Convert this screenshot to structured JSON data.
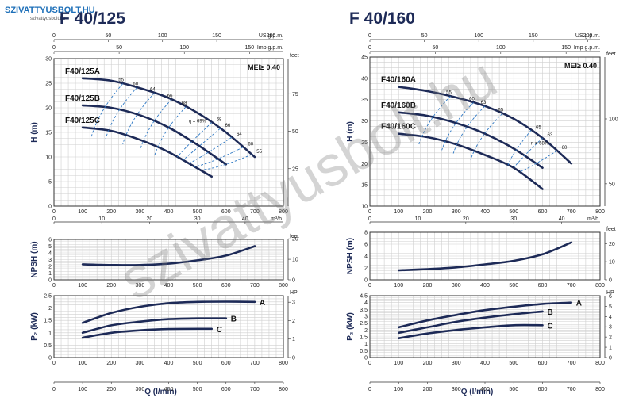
{
  "logo": {
    "text": "SZIVATTYUSBOLT.HU",
    "subtext": "szivattyusbolt.hu"
  },
  "watermark": "szivattyusbolt.hu",
  "colors": {
    "curve": "#1d2a57",
    "efficiency": "#2e78c4",
    "grid": "#cfcfcf"
  },
  "chart_data": [
    {
      "model": "F 40/125",
      "title": "F 40/125",
      "mei": "MEI≥ 0.40",
      "eta_label": "η = 69%",
      "flow_lpm_label": "Q (l/min)",
      "flow_lpm_ticks": [
        "0",
        "100",
        "200",
        "300",
        "400",
        "500",
        "600",
        "700",
        "800"
      ],
      "flow_m3h_label": "m³/h",
      "flow_m3h_ticks": [
        "0",
        "10",
        "20",
        "30",
        "40"
      ],
      "us_gpm_label": "US g.p.m.",
      "us_gpm_ticks": [
        "0",
        "50",
        "100",
        "150",
        "200"
      ],
      "imp_gpm_label": "Imp g.p.m.",
      "imp_gpm_ticks": [
        "0",
        "50",
        "100",
        "150"
      ],
      "head": {
        "type": "line",
        "ylabel": "H (m)",
        "ylim": [
          0,
          30
        ],
        "yticks": [
          "0",
          "5",
          "10",
          "15",
          "20",
          "25",
          "30"
        ],
        "y2label": "feet",
        "y2ticks": [
          "25",
          "50",
          "75"
        ],
        "series": [
          {
            "name": "F40/125A",
            "x": [
              100,
              200,
              300,
              400,
              500,
              600,
              700
            ],
            "y": [
              26,
              25.5,
              24,
              22,
              19,
              15,
              10
            ]
          },
          {
            "name": "F40/125B",
            "x": [
              100,
              200,
              300,
              400,
              500,
              600
            ],
            "y": [
              20.5,
              20,
              18.5,
              16,
              12.5,
              8.5
            ]
          },
          {
            "name": "F40/125C",
            "x": [
              100,
              200,
              300,
              400,
              550
            ],
            "y": [
              16,
              15.3,
              13.5,
              11,
              6
            ]
          }
        ],
        "efficiency_labels": [
          "55",
          "60",
          "64",
          "66",
          "68",
          "68",
          "66",
          "64",
          "60",
          "55"
        ]
      },
      "npsh": {
        "type": "line",
        "ylabel": "NPSH (m)",
        "ylim": [
          0,
          6
        ],
        "yticks": [
          "0",
          "1",
          "2",
          "3",
          "4",
          "5",
          "6"
        ],
        "y2label": "feet",
        "y2ticks": [
          "0",
          "10",
          "20"
        ],
        "series": [
          {
            "name": "",
            "x": [
              100,
              200,
              300,
              400,
              500,
              600,
              700
            ],
            "y": [
              2.3,
              2.2,
              2.2,
              2.4,
              2.9,
              3.6,
              5
            ]
          }
        ]
      },
      "power": {
        "type": "line",
        "ylabel": "P₂ (kW)",
        "ylim": [
          0,
          2.5
        ],
        "yticks": [
          "0",
          "0.5",
          "1",
          "1.5",
          "2",
          "2.5"
        ],
        "y2label": "HP",
        "y2ticks": [
          "0",
          "1",
          "2",
          "3"
        ],
        "series": [
          {
            "name": "A",
            "x": [
              100,
              200,
              300,
              400,
              500,
              600,
              700
            ],
            "y": [
              1.4,
              1.8,
              2.05,
              2.2,
              2.25,
              2.26,
              2.25
            ]
          },
          {
            "name": "B",
            "x": [
              100,
              200,
              300,
              400,
              500,
              600
            ],
            "y": [
              1.0,
              1.3,
              1.45,
              1.55,
              1.58,
              1.58
            ]
          },
          {
            "name": "C",
            "x": [
              100,
              200,
              300,
              400,
              550
            ],
            "y": [
              0.8,
              1.0,
              1.1,
              1.15,
              1.16
            ]
          }
        ]
      }
    },
    {
      "model": "F 40/160",
      "title": "F 40/160",
      "mei": "MEI≥ 0.40",
      "eta_label": "η = 68%",
      "flow_lpm_label": "Q (l/min)",
      "flow_lpm_ticks": [
        "0",
        "100",
        "200",
        "300",
        "400",
        "500",
        "600",
        "700",
        "800"
      ],
      "flow_m3h_label": "m³/h",
      "flow_m3h_ticks": [
        "0",
        "10",
        "20",
        "30",
        "40"
      ],
      "us_gpm_label": "US g.p.m.",
      "us_gpm_ticks": [
        "0",
        "50",
        "100",
        "150",
        "200"
      ],
      "imp_gpm_label": "Imp g.p.m.",
      "imp_gpm_ticks": [
        "0",
        "50",
        "100",
        "150"
      ],
      "head": {
        "type": "line",
        "ylabel": "H (m)",
        "ylim": [
          10,
          45
        ],
        "yticks": [
          "10",
          "15",
          "20",
          "25",
          "30",
          "35",
          "40",
          "45"
        ],
        "y2label": "feet",
        "y2ticks": [
          "50",
          "100"
        ],
        "series": [
          {
            "name": "F40/160A",
            "x": [
              100,
              200,
              300,
              400,
              500,
              600,
              700
            ],
            "y": [
              38,
              37,
              35.5,
              33.5,
              30.5,
              26,
              20
            ]
          },
          {
            "name": "F40/160B",
            "x": [
              100,
              200,
              300,
              400,
              500,
              600
            ],
            "y": [
              32,
              31.2,
              29.5,
              27,
              23.5,
              19
            ]
          },
          {
            "name": "F40/160C",
            "x": [
              100,
              200,
              300,
              400,
              500,
              600
            ],
            "y": [
              27,
              26.2,
              24.5,
              22,
              19,
              14
            ]
          }
        ],
        "efficiency_labels": [
          "55",
          "60",
          "63",
          "65",
          "65",
          "63",
          "60"
        ]
      },
      "npsh": {
        "type": "line",
        "ylabel": "NPSH (m)",
        "ylim": [
          0,
          8
        ],
        "yticks": [
          "0",
          "2",
          "4",
          "6",
          "8"
        ],
        "y2label": "feet",
        "y2ticks": [
          "0",
          "10",
          "20"
        ],
        "series": [
          {
            "name": "",
            "x": [
              100,
              200,
              300,
              400,
              500,
              600,
              700
            ],
            "y": [
              1.6,
              1.8,
              2.1,
              2.6,
              3.2,
              4.3,
              6.3
            ]
          }
        ]
      },
      "power": {
        "type": "line",
        "ylabel": "P₂ (kW)",
        "ylim": [
          0,
          4.5
        ],
        "yticks": [
          "0",
          "0.5",
          "1",
          "1.5",
          "2",
          "2.5",
          "3",
          "3.5",
          "4",
          "4.5"
        ],
        "y2label": "HP",
        "y2ticks": [
          "0",
          "1",
          "2",
          "3",
          "4",
          "5",
          "6"
        ],
        "series": [
          {
            "name": "A",
            "x": [
              100,
              200,
              300,
              400,
              500,
              600,
              700
            ],
            "y": [
              2.2,
              2.7,
              3.1,
              3.45,
              3.7,
              3.9,
              4.0
            ]
          },
          {
            "name": "B",
            "x": [
              100,
              200,
              300,
              400,
              500,
              600
            ],
            "y": [
              1.8,
              2.2,
              2.6,
              2.9,
              3.15,
              3.35
            ]
          },
          {
            "name": "C",
            "x": [
              100,
              200,
              300,
              400,
              500,
              600
            ],
            "y": [
              1.4,
              1.75,
              2.0,
              2.2,
              2.35,
              2.35
            ]
          }
        ]
      }
    }
  ]
}
